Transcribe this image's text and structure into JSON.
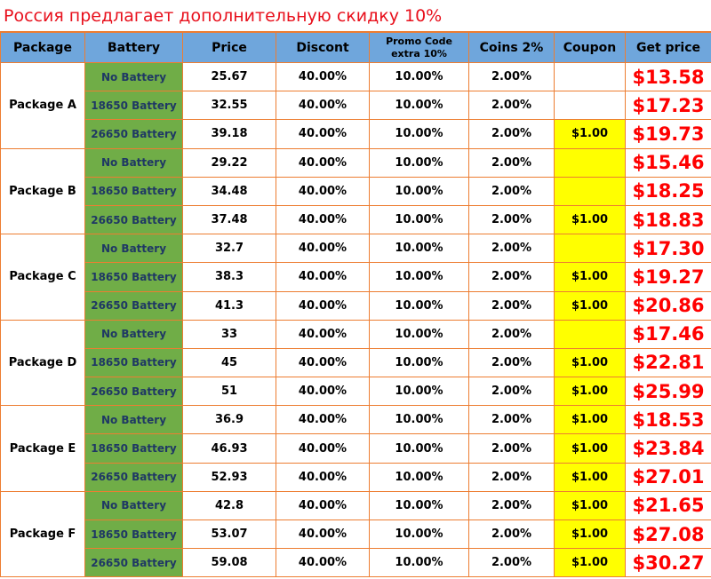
{
  "title": "Россия предлагает дополнительную скидку 10%",
  "header": [
    "Package",
    "Battery",
    "Price",
    "Discont",
    "Promo Code extra 10%",
    "Coins 2%",
    "Coupon",
    "Get price"
  ],
  "packages": [
    {
      "name": "Package A",
      "rows": [
        {
          "battery": "No Battery",
          "price": "25.67",
          "discount": "40.00%",
          "promo": "10.00%",
          "coins": "2.00%",
          "coupon": null,
          "coupon_highlight": false,
          "get_price": "$13.58"
        },
        {
          "battery": "18650 Battery",
          "price": "32.55",
          "discount": "40.00%",
          "promo": "10.00%",
          "coins": "2.00%",
          "coupon": null,
          "coupon_highlight": false,
          "get_price": "$17.23"
        },
        {
          "battery": "26650 Battery",
          "price": "39.18",
          "discount": "40.00%",
          "promo": "10.00%",
          "coins": "2.00%",
          "coupon": "$1.00",
          "coupon_highlight": true,
          "get_price": "$19.73"
        }
      ]
    },
    {
      "name": "Package B",
      "rows": [
        {
          "battery": "No Battery",
          "price": "29.22",
          "discount": "40.00%",
          "promo": "10.00%",
          "coins": "2.00%",
          "coupon": null,
          "coupon_highlight": true,
          "get_price": "$15.46"
        },
        {
          "battery": "18650 Battery",
          "price": "34.48",
          "discount": "40.00%",
          "promo": "10.00%",
          "coins": "2.00%",
          "coupon": null,
          "coupon_highlight": true,
          "get_price": "$18.25"
        },
        {
          "battery": "26650 Battery",
          "price": "37.48",
          "discount": "40.00%",
          "promo": "10.00%",
          "coins": "2.00%",
          "coupon": "$1.00",
          "coupon_highlight": true,
          "get_price": "$18.83"
        }
      ]
    },
    {
      "name": "Package C",
      "rows": [
        {
          "battery": "No Battery",
          "price": "32.7",
          "discount": "40.00%",
          "promo": "10.00%",
          "coins": "2.00%",
          "coupon": null,
          "coupon_highlight": true,
          "get_price": "$17.30"
        },
        {
          "battery": "18650 Battery",
          "price": "38.3",
          "discount": "40.00%",
          "promo": "10.00%",
          "coins": "2.00%",
          "coupon": "$1.00",
          "coupon_highlight": true,
          "get_price": "$19.27"
        },
        {
          "battery": "26650 Battery",
          "price": "41.3",
          "discount": "40.00%",
          "promo": "10.00%",
          "coins": "2.00%",
          "coupon": "$1.00",
          "coupon_highlight": true,
          "get_price": "$20.86"
        }
      ]
    },
    {
      "name": "Package D",
      "rows": [
        {
          "battery": "No Battery",
          "price": "33",
          "discount": "40.00%",
          "promo": "10.00%",
          "coins": "2.00%",
          "coupon": null,
          "coupon_highlight": true,
          "get_price": "$17.46"
        },
        {
          "battery": "18650 Battery",
          "price": "45",
          "discount": "40.00%",
          "promo": "10.00%",
          "coins": "2.00%",
          "coupon": "$1.00",
          "coupon_highlight": true,
          "get_price": "$22.81"
        },
        {
          "battery": "26650 Battery",
          "price": "51",
          "discount": "40.00%",
          "promo": "10.00%",
          "coins": "2.00%",
          "coupon": "$1.00",
          "coupon_highlight": true,
          "get_price": "$25.99"
        }
      ]
    },
    {
      "name": "Package E",
      "rows": [
        {
          "battery": "No Battery",
          "price": "36.9",
          "discount": "40.00%",
          "promo": "10.00%",
          "coins": "2.00%",
          "coupon": "$1.00",
          "coupon_highlight": true,
          "get_price": "$18.53"
        },
        {
          "battery": "18650 Battery",
          "price": "46.93",
          "discount": "40.00%",
          "promo": "10.00%",
          "coins": "2.00%",
          "coupon": "$1.00",
          "coupon_highlight": true,
          "get_price": "$23.84"
        },
        {
          "battery": "26650 Battery",
          "price": "52.93",
          "discount": "40.00%",
          "promo": "10.00%",
          "coins": "2.00%",
          "coupon": "$1.00",
          "coupon_highlight": true,
          "get_price": "$27.01"
        }
      ]
    },
    {
      "name": "Package F",
      "rows": [
        {
          "battery": "No Battery",
          "price": "42.8",
          "discount": "40.00%",
          "promo": "10.00%",
          "coins": "2.00%",
          "coupon": "$1.00",
          "coupon_highlight": true,
          "get_price": "$21.65"
        },
        {
          "battery": "18650 Battery",
          "price": "53.07",
          "discount": "40.00%",
          "promo": "10.00%",
          "coins": "2.00%",
          "coupon": "$1.00",
          "coupon_highlight": true,
          "get_price": "$27.08"
        },
        {
          "battery": "26650 Battery",
          "price": "59.08",
          "discount": "40.00%",
          "promo": "10.00%",
          "coins": "2.00%",
          "coupon": "$1.00",
          "coupon_highlight": true,
          "get_price": "$30.27"
        }
      ]
    }
  ]
}
